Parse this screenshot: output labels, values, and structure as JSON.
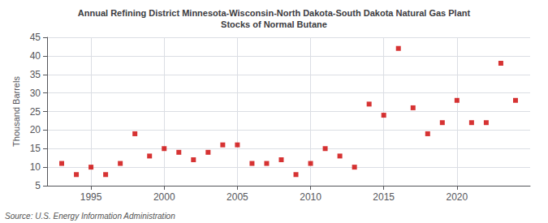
{
  "chart_data": {
    "type": "scatter",
    "title": "Annual Refining District Minnesota-Wisconsin-North Dakota-South Dakota Natural Gas Plant\nStocks of Normal Butane",
    "ylabel": "Thousand Barrels",
    "source": "Source: U.S. Energy Information Administration",
    "x": [
      1993,
      1994,
      1995,
      1996,
      1997,
      1998,
      1999,
      2000,
      2001,
      2002,
      2003,
      2004,
      2005,
      2006,
      2007,
      2008,
      2009,
      2010,
      2011,
      2012,
      2013,
      2014,
      2015,
      2016,
      2017,
      2018,
      2019,
      2020,
      2021,
      2022,
      2023,
      2024
    ],
    "values": [
      11,
      8,
      10,
      8,
      11,
      19,
      13,
      15,
      14,
      12,
      14,
      16,
      16,
      11,
      11,
      12,
      8,
      11,
      15,
      13,
      10,
      27,
      24,
      42,
      26,
      19,
      22,
      28,
      22,
      22,
      38,
      28
    ],
    "color": "#cc0000",
    "marker": "square",
    "xlim": [
      1992,
      2025
    ],
    "xticks": [
      1995,
      2000,
      2005,
      2010,
      2015,
      2020
    ],
    "ylim": [
      5,
      45
    ],
    "yticks": [
      5,
      10,
      15,
      20,
      25,
      30,
      35,
      40,
      45
    ],
    "grid": true
  }
}
